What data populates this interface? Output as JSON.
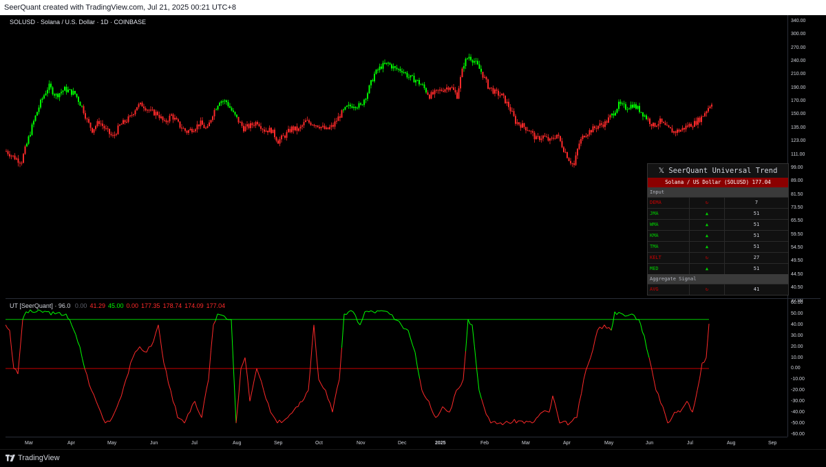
{
  "header": {
    "caption": "SeerQuant created with TradingView.com, Jul 21, 2025 00:21 UTC+8"
  },
  "symbol": {
    "title": "SOLUSD · Solana / U.S. Dollar · 1D · COINBASE"
  },
  "price_axis": {
    "ticks": [
      "340.00",
      "300.00",
      "270.00",
      "240.00",
      "210.00",
      "190.00",
      "170.00",
      "150.00",
      "135.00",
      "123.00",
      "111.00",
      "99.00",
      "89.00",
      "81.50",
      "73.50",
      "65.50",
      "59.50",
      "54.50",
      "49.50",
      "44.50",
      "40.50",
      "37.00"
    ]
  },
  "indicator": {
    "name": "UT [SeerQuant] · 96.0",
    "values": [
      {
        "text": "0.00",
        "color": "#5d606b"
      },
      {
        "text": "41.29",
        "color": "#ff2a2a"
      },
      {
        "text": "45.00",
        "color": "#00ff00"
      },
      {
        "text": "0.00",
        "color": "#ff2a2a"
      },
      {
        "text": "177.35",
        "color": "#ff2a2a"
      },
      {
        "text": "178.74",
        "color": "#ff2a2a"
      },
      {
        "text": "174.09",
        "color": "#ff2a2a"
      },
      {
        "text": "177.04",
        "color": "#ff2a2a"
      }
    ],
    "axis_ticks": [
      "60.00",
      "50.00",
      "40.00",
      "30.00",
      "20.00",
      "10.00",
      "0.00",
      "-10.00",
      "-20.00",
      "-30.00",
      "-40.00",
      "-50.00",
      "-60.00"
    ],
    "upper_level": 45,
    "zero_level": 0
  },
  "time_axis": {
    "labels": [
      "Mar",
      "Apr",
      "May",
      "Jun",
      "Jul",
      "Aug",
      "Sep",
      "Oct",
      "Nov",
      "Dec",
      "2025",
      "Feb",
      "Mar",
      "Apr",
      "May",
      "Jun",
      "Jul",
      "Aug",
      "Sep"
    ]
  },
  "table": {
    "title": "𝕏 SeerQuant Universal Trend",
    "subtitle": "Solana / US Dollar (SOLUSD) 177.04",
    "section_input": "Input",
    "rows": [
      {
        "name": "DEMA",
        "signal": "↻",
        "value": "7",
        "color": "#cc0000"
      },
      {
        "name": "JMA",
        "signal": "▲",
        "value": "51",
        "color": "#00cc00"
      },
      {
        "name": "WMA",
        "signal": "▲",
        "value": "51",
        "color": "#00cc00"
      },
      {
        "name": "KMA",
        "signal": "▲",
        "value": "51",
        "color": "#00cc00"
      },
      {
        "name": "TMA",
        "signal": "▲",
        "value": "51",
        "color": "#00cc00"
      },
      {
        "name": "KELT",
        "signal": "↻",
        "value": "27",
        "color": "#cc0000"
      },
      {
        "name": "MED",
        "signal": "▲",
        "value": "51",
        "color": "#00cc00"
      }
    ],
    "section_agg": "Aggregate Signal",
    "aggregate": {
      "name": "AVG",
      "signal": "↻",
      "value": "41",
      "color": "#cc0000"
    }
  },
  "footer": {
    "brand": "TradingView"
  },
  "colors": {
    "bull": "#00ff00",
    "bear": "#ff2a2a",
    "zero_line": "#cc0000"
  }
}
